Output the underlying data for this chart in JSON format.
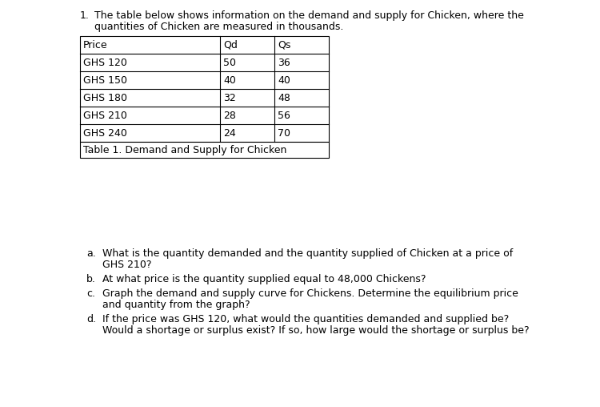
{
  "question_number": "1.",
  "intro_line1": "The table below shows information on the demand and supply for Chicken, where the",
  "intro_line2": "quantities of Chicken are measured in thousands.",
  "table_caption": "Table 1. Demand and Supply for Chicken",
  "col_headers": [
    "Price",
    "Qd",
    "Qs"
  ],
  "rows": [
    [
      "GHS 120",
      "50",
      "36"
    ],
    [
      "GHS 150",
      "40",
      "40"
    ],
    [
      "GHS 180",
      "32",
      "48"
    ],
    [
      "GHS 210",
      "28",
      "56"
    ],
    [
      "GHS 240",
      "24",
      "70"
    ]
  ],
  "questions": [
    [
      "a.",
      "What is the quantity demanded and the quantity supplied of Chicken at a price of",
      "GHS 210?"
    ],
    [
      "b.",
      "At what price is the quantity supplied equal to 48,000 Chickens?",
      ""
    ],
    [
      "c.",
      "Graph the demand and supply curve for Chickens. Determine the equilibrium price",
      "and quantity from the graph?"
    ],
    [
      "d.",
      "If the price was GHS 120, what would the quantities demanded and supplied be?",
      "Would a shortage or surplus exist? If so, how large would the shortage or surplus be?"
    ]
  ],
  "bg_color": "#ffffff",
  "text_color": "#000000",
  "font_size": 9.0
}
